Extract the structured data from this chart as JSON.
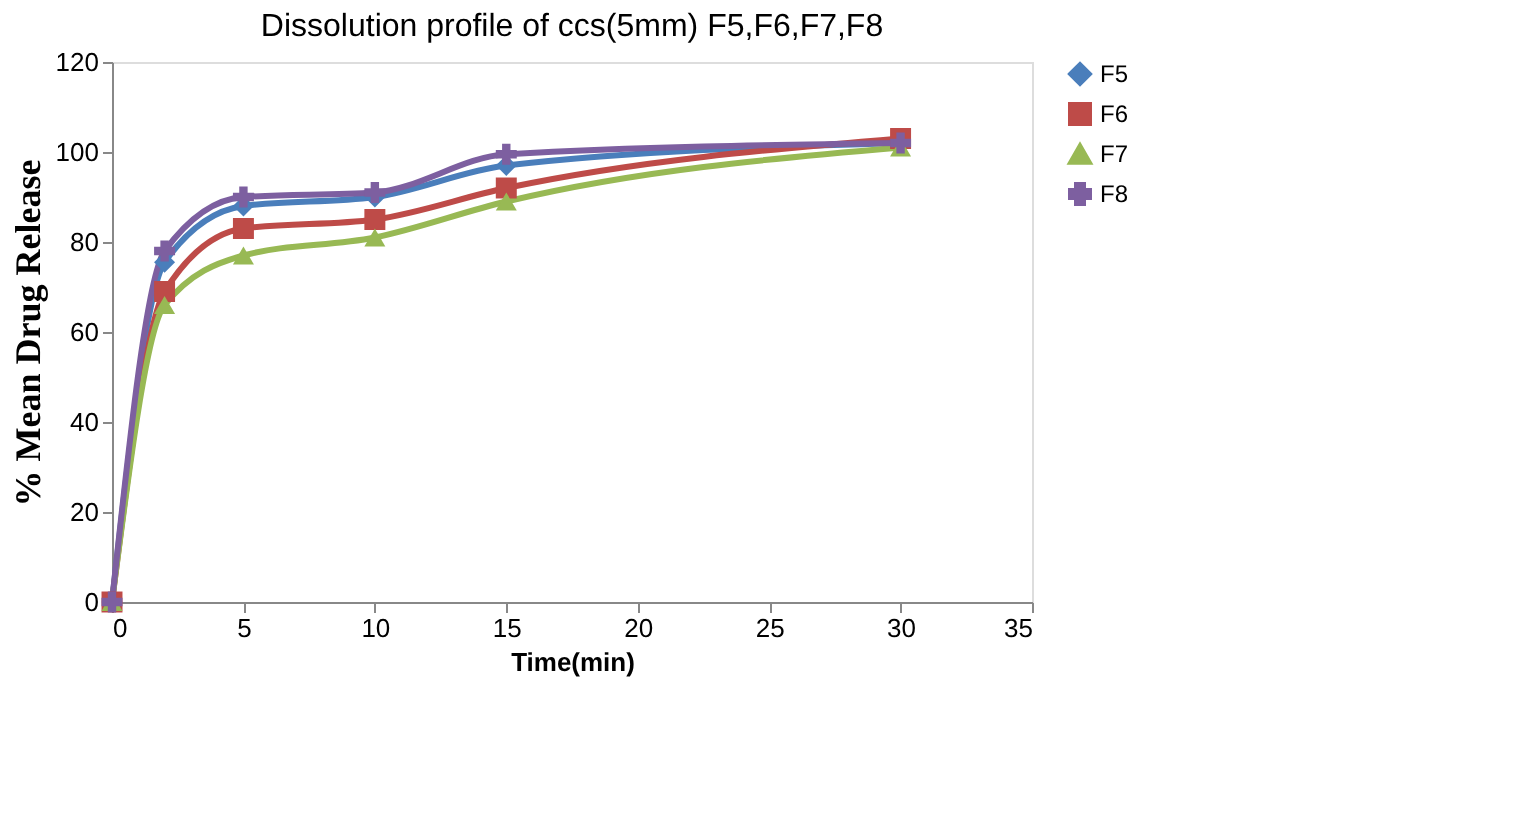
{
  "chart_data": {
    "type": "line",
    "title": "Dissolution profile of ccs(5mm) F5,F6,F7,F8",
    "xlabel": "Time(min)",
    "ylabel": "% Mean Drug Release",
    "x": [
      0,
      2,
      5,
      10,
      15,
      30
    ],
    "series": [
      {
        "name": "F5",
        "color": "#4a7ebb",
        "marker": "diamond",
        "values": [
          0,
          75.5,
          88,
          90,
          97,
          102
        ]
      },
      {
        "name": "F6",
        "color": "#be4b48",
        "marker": "square",
        "values": [
          0,
          69,
          83,
          85,
          92,
          103
        ]
      },
      {
        "name": "F7",
        "color": "#98b954",
        "marker": "triangle",
        "values": [
          0,
          66,
          77,
          81,
          89,
          101
        ]
      },
      {
        "name": "F8",
        "color": "#7d5fa0",
        "marker": "cross",
        "values": [
          0,
          78,
          90,
          91,
          99.5,
          102
        ]
      }
    ],
    "xlim": [
      0,
      35
    ],
    "xticks": [
      0,
      5,
      10,
      15,
      20,
      25,
      30,
      35
    ],
    "ylim": [
      0,
      120
    ],
    "yticks": [
      0,
      20,
      40,
      60,
      80,
      100,
      120
    ],
    "grid": false,
    "legend": "right",
    "line_style": "solid"
  }
}
